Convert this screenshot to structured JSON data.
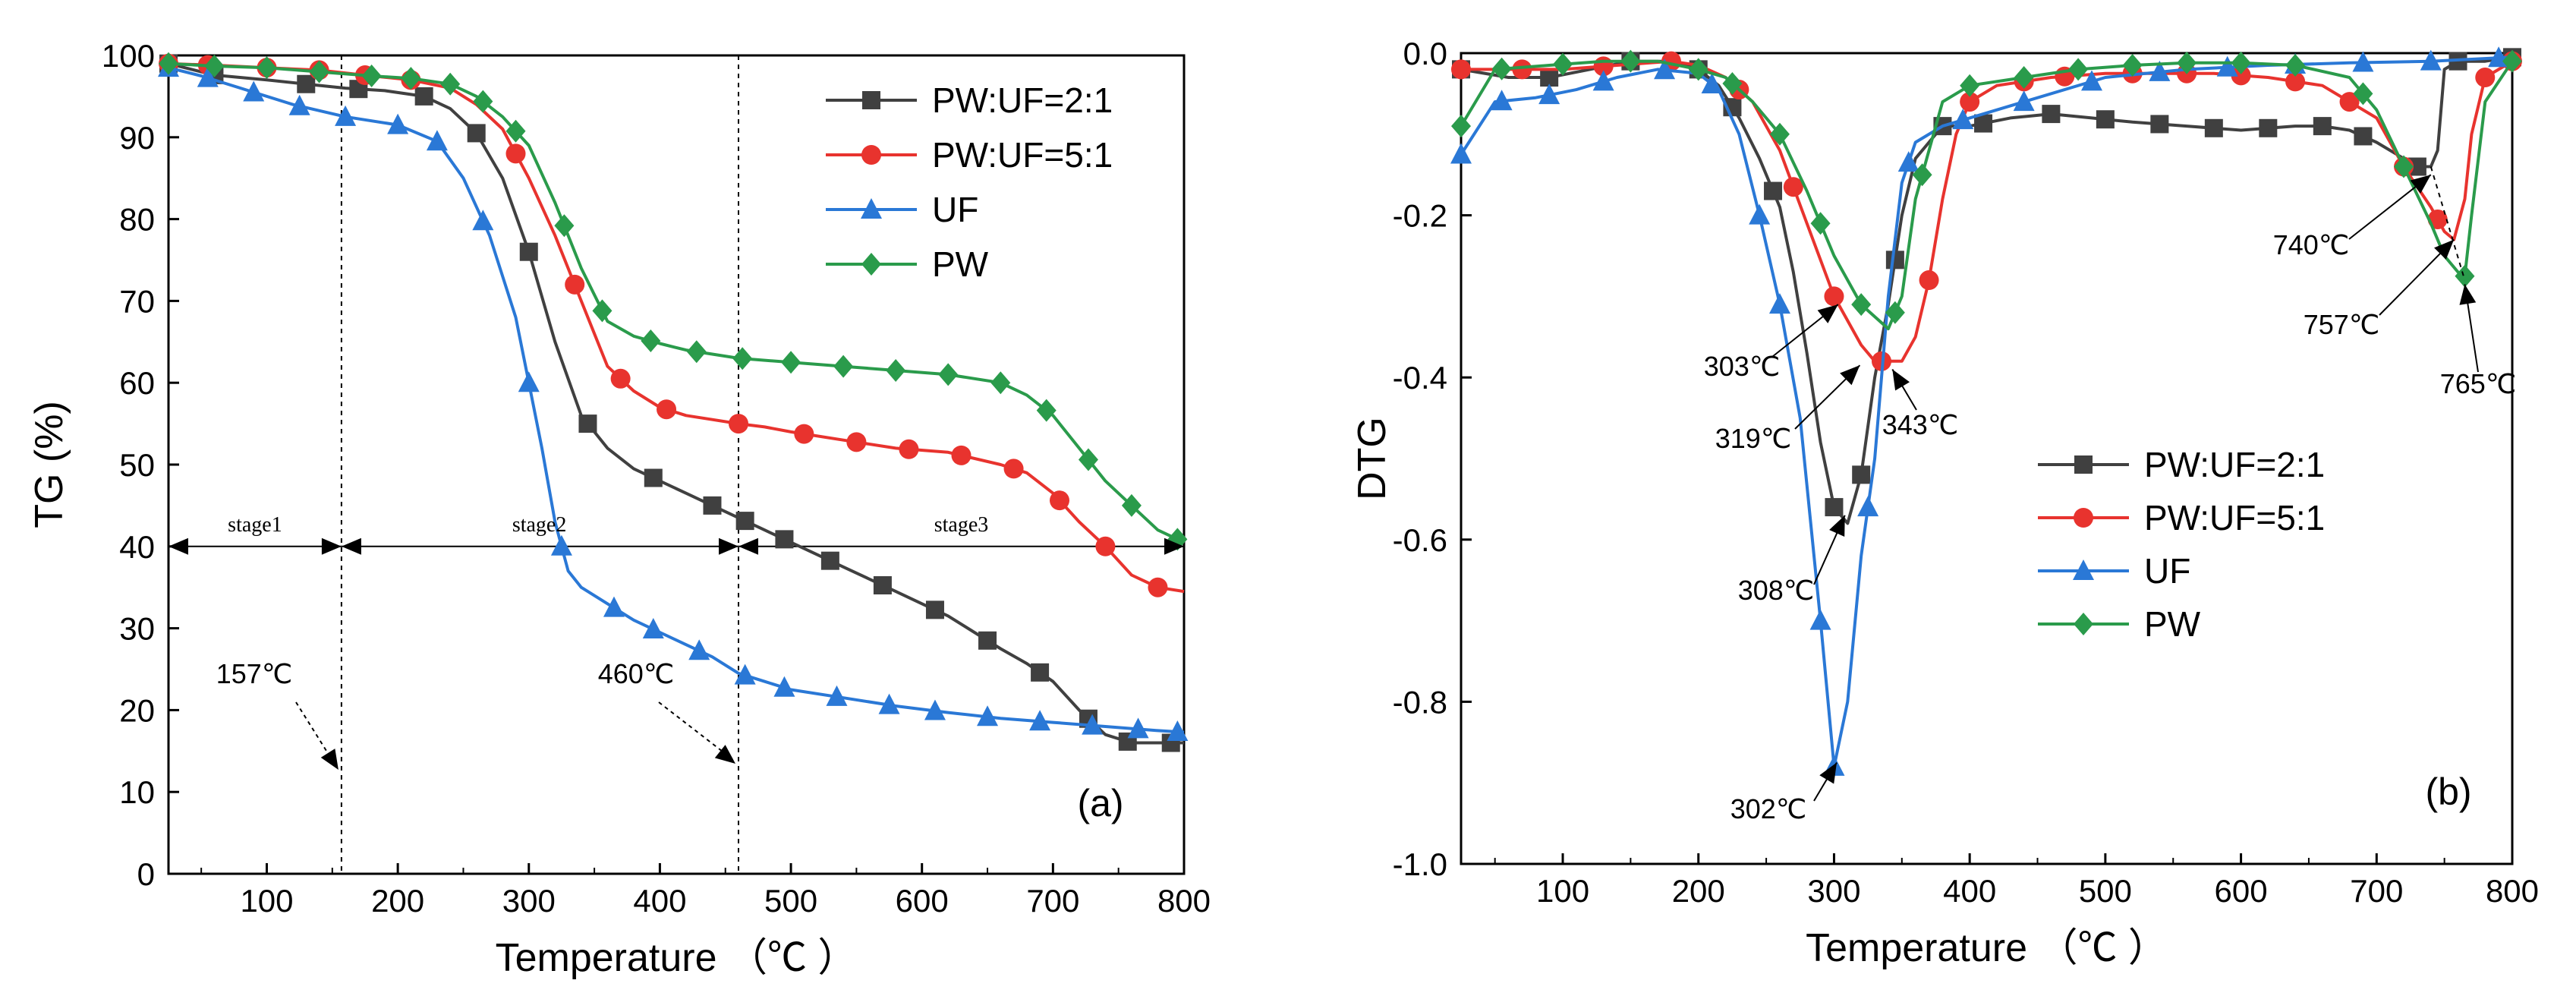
{
  "chart_data": [
    {
      "type": "line",
      "panel_label": "(a)",
      "xlabel": "Temperature （℃ ）",
      "ylabel": "TG (%)",
      "xlim": [
        25,
        800
      ],
      "ylim": [
        0,
        100
      ],
      "xticks": [
        100,
        200,
        300,
        400,
        500,
        600,
        700,
        800
      ],
      "yticks": [
        0,
        10,
        20,
        30,
        40,
        50,
        60,
        70,
        80,
        90,
        100
      ],
      "grid": false,
      "legend_position": "top-right",
      "series": [
        {
          "name": "PW:UF=2:1",
          "color": "#404040",
          "marker": "square",
          "x": [
            25,
            60,
            100,
            130,
            160,
            190,
            220,
            240,
            260,
            280,
            300,
            320,
            340,
            360,
            380,
            400,
            420,
            440,
            460,
            480,
            500,
            520,
            540,
            560,
            580,
            600,
            620,
            640,
            660,
            680,
            700,
            720,
            740,
            760,
            780,
            800
          ],
          "y": [
            99,
            97.6,
            97,
            96.5,
            96,
            95.7,
            95,
            93.5,
            90.5,
            85,
            76,
            65,
            56,
            52,
            49.5,
            48,
            46.5,
            45,
            43.5,
            42,
            40.5,
            39,
            37.5,
            36,
            34.5,
            33,
            31.5,
            29.5,
            27.5,
            25.7,
            23.5,
            20,
            17,
            16,
            16,
            16
          ],
          "markers_x": [
            25,
            60,
            130,
            170,
            220,
            260,
            300,
            345,
            395,
            440,
            465,
            495,
            530,
            570,
            610,
            650,
            690,
            727,
            757,
            790
          ]
        },
        {
          "name": "PW:UF=5:1",
          "color": "#e8332e",
          "marker": "circle",
          "x": [
            25,
            60,
            100,
            140,
            180,
            210,
            240,
            260,
            280,
            300,
            320,
            340,
            360,
            380,
            400,
            420,
            440,
            460,
            480,
            500,
            540,
            580,
            620,
            660,
            680,
            700,
            720,
            740,
            760,
            780,
            800
          ],
          "y": [
            99,
            98.8,
            98.5,
            98.2,
            97.5,
            97,
            96,
            94,
            91,
            85,
            78,
            70,
            62,
            59,
            57,
            56,
            55.5,
            55,
            54.6,
            54,
            53,
            52,
            51.5,
            50,
            49,
            46.5,
            43,
            40,
            36.5,
            35,
            34.5
          ],
          "markers_x": [
            25,
            55,
            100,
            140,
            175,
            210,
            290,
            335,
            370,
            405,
            460,
            510,
            550,
            590,
            630,
            670,
            705,
            740,
            780
          ]
        },
        {
          "name": "UF",
          "color": "#2a78d6",
          "marker": "triangle",
          "x": [
            25,
            50,
            80,
            120,
            160,
            200,
            230,
            250,
            270,
            290,
            300,
            310,
            320,
            330,
            340,
            360,
            380,
            400,
            420,
            440,
            460,
            480,
            500,
            540,
            580,
            620,
            660,
            700,
            740,
            780,
            800
          ],
          "y": [
            98.5,
            97.5,
            96,
            94,
            92.5,
            91.5,
            89.5,
            85,
            78,
            68,
            60,
            52,
            43,
            37,
            35,
            33,
            31,
            29.5,
            28,
            26.5,
            24.5,
            23.5,
            22.5,
            21.5,
            20.5,
            19.7,
            19,
            18.5,
            18,
            17.5,
            17.3
          ],
          "markers_x": [
            25,
            55,
            90,
            125,
            160,
            200,
            230,
            265,
            300,
            325,
            365,
            395,
            430,
            465,
            495,
            535,
            575,
            610,
            650,
            690,
            730,
            765,
            795
          ]
        },
        {
          "name": "PW",
          "color": "#2a9b4b",
          "marker": "diamond",
          "x": [
            25,
            60,
            100,
            140,
            180,
            210,
            240,
            260,
            280,
            300,
            320,
            340,
            360,
            380,
            400,
            420,
            440,
            460,
            500,
            540,
            580,
            620,
            660,
            680,
            700,
            720,
            740,
            760,
            780,
            800
          ],
          "y": [
            99,
            98.7,
            98.5,
            98,
            97.5,
            97.2,
            96.5,
            95,
            92.5,
            89,
            82,
            74,
            67.5,
            65.7,
            64.8,
            64,
            63.5,
            63,
            62.5,
            62,
            61.5,
            61,
            60,
            58.5,
            56,
            52,
            48,
            45,
            42,
            40.5
          ],
          "markers_x": [
            25,
            60,
            100,
            140,
            180,
            210,
            240,
            265,
            290,
            327,
            356,
            393,
            428,
            463,
            500,
            540,
            580,
            620,
            660,
            695,
            727,
            760,
            795
          ]
        }
      ],
      "annotations": [
        {
          "text": "157℃",
          "x": 157
        },
        {
          "text": "460℃",
          "x": 460
        },
        {
          "text": "stage1"
        },
        {
          "text": "stage2"
        },
        {
          "text": "stage3"
        }
      ],
      "reference_lines": {
        "vertical_x": [
          157,
          460
        ],
        "horizontal_y": 40
      }
    },
    {
      "type": "line",
      "panel_label": "(b)",
      "xlabel": "Temperature （℃ ）",
      "ylabel": "DTG",
      "xlim": [
        25,
        800
      ],
      "ylim": [
        -1.0,
        0.0
      ],
      "xticks": [
        100,
        200,
        300,
        400,
        500,
        600,
        700,
        800
      ],
      "yticks": [
        0.0,
        -0.2,
        -0.4,
        -0.6,
        -0.8,
        -1.0
      ],
      "ytick_labels": [
        "0.0",
        "-0.2",
        "-0.4",
        "-0.6",
        "-0.8",
        "-1.0"
      ],
      "grid": false,
      "legend_position": "bottom-center",
      "series": [
        {
          "name": "PW:UF=2:1",
          "color": "#404040",
          "marker": "square",
          "x": [
            25,
            60,
            90,
            120,
            150,
            180,
            200,
            215,
            230,
            245,
            260,
            270,
            280,
            290,
            300,
            310,
            320,
            330,
            340,
            350,
            360,
            380,
            400,
            430,
            460,
            490,
            520,
            560,
            600,
            640,
            660,
            680,
            700,
            720,
            730,
            740,
            745,
            750,
            760,
            780,
            800
          ],
          "y": [
            -0.02,
            -0.03,
            -0.03,
            -0.02,
            -0.01,
            -0.01,
            -0.02,
            -0.04,
            -0.08,
            -0.13,
            -0.19,
            -0.27,
            -0.37,
            -0.48,
            -0.56,
            -0.58,
            -0.52,
            -0.4,
            -0.31,
            -0.2,
            -0.13,
            -0.09,
            -0.09,
            -0.08,
            -0.075,
            -0.08,
            -0.085,
            -0.09,
            -0.095,
            -0.09,
            -0.09,
            -0.095,
            -0.11,
            -0.13,
            -0.14,
            -0.14,
            -0.12,
            -0.02,
            -0.01,
            -0.01,
            -0.005
          ],
          "markers_x": [
            25,
            90,
            150,
            200,
            225,
            255,
            300,
            320,
            345,
            380,
            410,
            460,
            500,
            540,
            580,
            620,
            660,
            690,
            730,
            760,
            800
          ]
        },
        {
          "name": "PW:UF=5:1",
          "color": "#e8332e",
          "marker": "circle",
          "x": [
            25,
            60,
            100,
            140,
            180,
            200,
            220,
            240,
            260,
            280,
            300,
            320,
            330,
            340,
            350,
            360,
            370,
            380,
            390,
            400,
            420,
            460,
            500,
            540,
            580,
            620,
            660,
            700,
            720,
            740,
            750,
            757,
            765,
            770,
            780,
            800
          ],
          "y": [
            -0.02,
            -0.02,
            -0.02,
            -0.015,
            -0.01,
            -0.015,
            -0.03,
            -0.06,
            -0.12,
            -0.21,
            -0.3,
            -0.36,
            -0.38,
            -0.38,
            -0.38,
            -0.35,
            -0.28,
            -0.18,
            -0.1,
            -0.06,
            -0.04,
            -0.03,
            -0.025,
            -0.025,
            -0.025,
            -0.03,
            -0.04,
            -0.08,
            -0.14,
            -0.19,
            -0.22,
            -0.23,
            -0.18,
            -0.1,
            -0.03,
            -0.01
          ],
          "markers_x": [
            25,
            70,
            130,
            180,
            230,
            270,
            300,
            335,
            370,
            400,
            440,
            470,
            520,
            560,
            600,
            640,
            680,
            720,
            745,
            780,
            800
          ]
        },
        {
          "name": "UF",
          "color": "#2a78d6",
          "marker": "triangle",
          "x": [
            25,
            50,
            80,
            110,
            140,
            170,
            200,
            215,
            230,
            245,
            260,
            275,
            290,
            300,
            310,
            320,
            330,
            340,
            350,
            360,
            380,
            400,
            440,
            500,
            560,
            620,
            680,
            740,
            800
          ],
          "y": [
            -0.125,
            -0.06,
            -0.055,
            -0.045,
            -0.03,
            -0.02,
            -0.025,
            -0.045,
            -0.1,
            -0.2,
            -0.31,
            -0.45,
            -0.7,
            -0.88,
            -0.8,
            -0.62,
            -0.5,
            -0.3,
            -0.16,
            -0.11,
            -0.09,
            -0.08,
            -0.06,
            -0.03,
            -0.02,
            -0.015,
            -0.012,
            -0.01,
            -0.005
          ],
          "markers_x": [
            25,
            55,
            90,
            130,
            175,
            210,
            245,
            260,
            290,
            300,
            325,
            355,
            395,
            440,
            490,
            540,
            590,
            640,
            690,
            740,
            790
          ]
        },
        {
          "name": "PW",
          "color": "#2a9b4b",
          "marker": "diamond",
          "x": [
            25,
            50,
            90,
            130,
            170,
            200,
            220,
            240,
            260,
            280,
            300,
            320,
            340,
            350,
            360,
            380,
            400,
            440,
            480,
            520,
            560,
            600,
            640,
            680,
            700,
            720,
            740,
            750,
            760,
            765,
            770,
            780,
            800
          ],
          "y": [
            -0.09,
            -0.02,
            -0.015,
            -0.01,
            -0.01,
            -0.02,
            -0.03,
            -0.06,
            -0.1,
            -0.17,
            -0.25,
            -0.31,
            -0.34,
            -0.3,
            -0.18,
            -0.06,
            -0.04,
            -0.03,
            -0.02,
            -0.015,
            -0.012,
            -0.012,
            -0.015,
            -0.03,
            -0.07,
            -0.14,
            -0.21,
            -0.25,
            -0.27,
            -0.275,
            -0.2,
            -0.06,
            -0.01
          ],
          "markers_x": [
            25,
            55,
            100,
            150,
            200,
            225,
            260,
            290,
            320,
            345,
            365,
            400,
            440,
            480,
            520,
            560,
            600,
            640,
            690,
            720,
            765,
            800
          ]
        }
      ],
      "annotations": [
        {
          "text": "303℃",
          "x": 303
        },
        {
          "text": "319℃",
          "x": 319
        },
        {
          "text": "308℃",
          "x": 308
        },
        {
          "text": "302℃",
          "x": 302
        },
        {
          "text": "343℃",
          "x": 343
        },
        {
          "text": "740℃",
          "x": 740
        },
        {
          "text": "757℃",
          "x": 757
        },
        {
          "text": "765℃",
          "x": 765
        }
      ]
    }
  ]
}
